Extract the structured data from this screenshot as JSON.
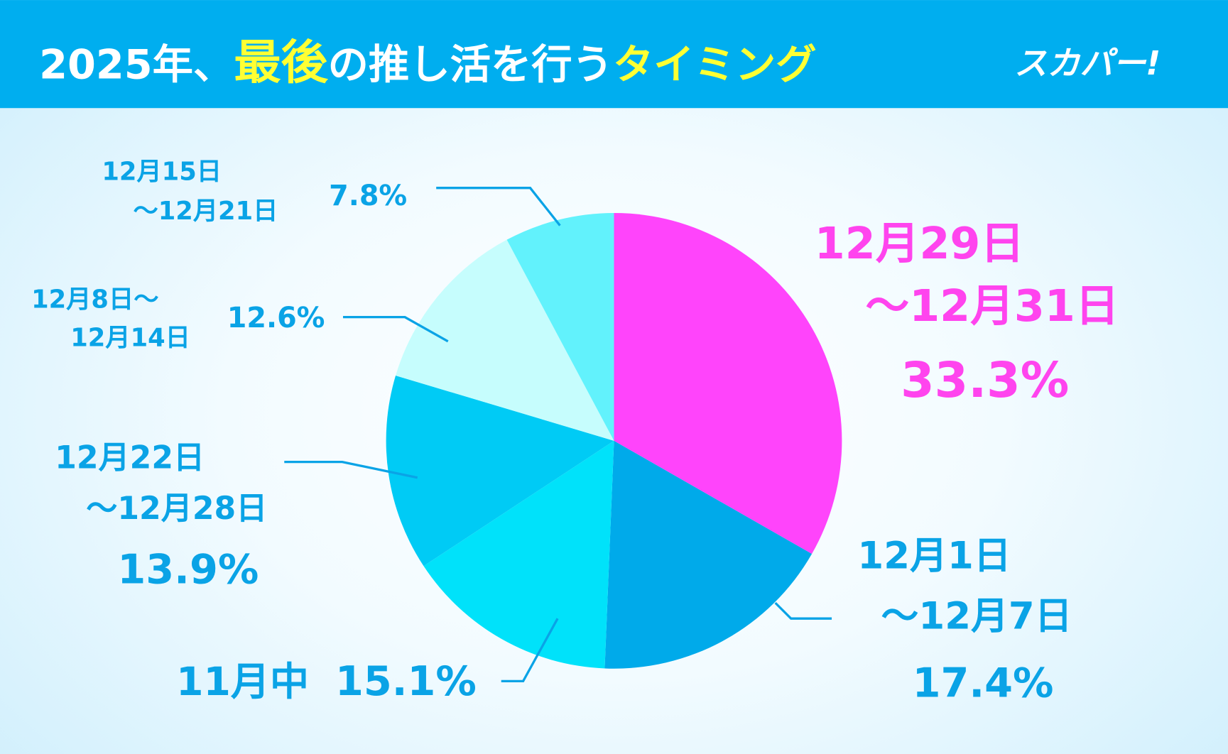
{
  "header": {
    "title_part1": "2025年、",
    "title_highlight1": "最後",
    "title_part2": "の推し活を行う",
    "title_highlight2": "タイミング",
    "brand": "スカパー!",
    "bg_color": "#00aeef",
    "highlight_color": "#ffff33"
  },
  "chart_data": {
    "type": "pie",
    "start": "top",
    "direction": "clockwise",
    "slices": [
      {
        "label_lines": [
          "12月29日",
          "～12月31日"
        ],
        "value": 33.3,
        "value_label": "33.3%",
        "color": "#ff44fb"
      },
      {
        "label_lines": [
          "12月1日",
          "～12月7日"
        ],
        "value": 17.4,
        "value_label": "17.4%",
        "color": "#00aaea"
      },
      {
        "label_lines": [
          "11月中"
        ],
        "value": 15.1,
        "value_label": "15.1%",
        "color": "#00e2fa"
      },
      {
        "label_lines": [
          "12月22日",
          "～12月28日"
        ],
        "value": 13.9,
        "value_label": "13.9%",
        "color": "#00cbf5"
      },
      {
        "label_lines": [
          "12月8日～",
          "12月14日"
        ],
        "value": 12.6,
        "value_label": "12.6%",
        "color": "#c6fdfd"
      },
      {
        "label_lines": [
          "12月15日",
          "～12月21日"
        ],
        "value": 7.8,
        "value_label": "7.8%",
        "color": "#62f2fc"
      }
    ]
  }
}
